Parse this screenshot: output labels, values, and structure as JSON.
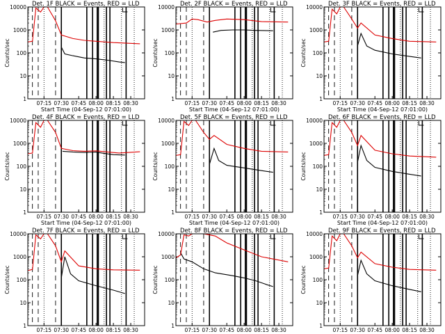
{
  "figure": {
    "ylabel": "Counts/sec",
    "xlabel": "Start Time (04-Sep-12 07:01:00)",
    "x_ticks": [
      "07:15",
      "07:30",
      "07:45",
      "08:00",
      "08:15",
      "08:30"
    ],
    "y_ticks": [
      "1",
      "10",
      "100",
      "1000",
      "10000"
    ],
    "legend_text": "BLACK = Events, RED = LLD",
    "colors": {
      "events": "#000000",
      "lld": "#dd0000",
      "frame": "#000000"
    }
  },
  "chart_data": [
    {
      "type": "line",
      "title": "Det. 1F BLACK = Events, RED = LLD",
      "xlabel": "Start Time (04-Sep-12 07:01:00)",
      "ylabel": "Counts/sec",
      "x_unit": "time HH:MM",
      "ylog": true,
      "ylim": [
        1,
        10000
      ],
      "series": [
        {
          "name": "Events",
          "color": "#000000",
          "points": [
            [
              "07:30",
              180
            ],
            [
              "07:33",
              90
            ],
            [
              "07:40",
              75
            ],
            [
              "07:50",
              60
            ],
            [
              "08:00",
              55
            ],
            [
              "08:10",
              48
            ],
            [
              "08:20",
              40
            ],
            [
              "08:25",
              38
            ]
          ]
        },
        {
          "name": "LLD",
          "color": "#dd0000",
          "points": [
            [
              "07:01",
              300
            ],
            [
              "07:05",
              320
            ],
            [
              "07:08",
              9000
            ],
            [
              "07:12",
              6000
            ],
            [
              "07:15",
              10000
            ],
            [
              "07:18",
              10000
            ],
            [
              "07:25",
              2500
            ],
            [
              "07:30",
              600
            ],
            [
              "07:40",
              420
            ],
            [
              "07:50",
              350
            ],
            [
              "08:00",
              320
            ],
            [
              "08:15",
              280
            ],
            [
              "08:30",
              260
            ],
            [
              "08:38",
              250
            ]
          ]
        }
      ]
    },
    {
      "type": "line",
      "title": "Det. 2F BLACK = Events, RED = LLD",
      "xlabel": "Start Time (04-Sep-12 07:01:00)",
      "ylabel": "Counts/sec",
      "x_unit": "time HH:MM",
      "ylog": true,
      "ylim": [
        1,
        10000
      ],
      "series": [
        {
          "name": "Events",
          "color": "#000000",
          "points": [
            [
              "07:33",
              800
            ],
            [
              "07:40",
              950
            ],
            [
              "07:50",
              1000
            ],
            [
              "08:00",
              1000
            ],
            [
              "08:10",
              950
            ],
            [
              "08:25",
              920
            ]
          ]
        },
        {
          "name": "LLD",
          "color": "#dd0000",
          "points": [
            [
              "07:01",
              1800
            ],
            [
              "07:10",
              2000
            ],
            [
              "07:15",
              3000
            ],
            [
              "07:20",
              2800
            ],
            [
              "07:28",
              2200
            ],
            [
              "07:35",
              2600
            ],
            [
              "07:45",
              3000
            ],
            [
              "08:00",
              2800
            ],
            [
              "08:15",
              2300
            ],
            [
              "08:38",
              2200
            ]
          ]
        }
      ]
    },
    {
      "type": "line",
      "title": "Det. 3F BLACK = Events, RED = LLD",
      "xlabel": "Start Time (04-Sep-12 07:01:00)",
      "ylabel": "Counts/sec",
      "x_unit": "time HH:MM",
      "ylog": true,
      "ylim": [
        1,
        10000
      ],
      "series": [
        {
          "name": "Events",
          "color": "#000000",
          "points": [
            [
              "07:30",
              200
            ],
            [
              "07:33",
              700
            ],
            [
              "07:38",
              200
            ],
            [
              "07:45",
              130
            ],
            [
              "08:00",
              90
            ],
            [
              "08:15",
              70
            ],
            [
              "08:25",
              60
            ]
          ]
        },
        {
          "name": "LLD",
          "color": "#dd0000",
          "points": [
            [
              "07:01",
              300
            ],
            [
              "07:05",
              320
            ],
            [
              "07:08",
              8000
            ],
            [
              "07:12",
              5000
            ],
            [
              "07:15",
              10000
            ],
            [
              "07:18",
              10000
            ],
            [
              "07:25",
              3000
            ],
            [
              "07:30",
              1200
            ],
            [
              "07:33",
              2000
            ],
            [
              "07:45",
              600
            ],
            [
              "08:00",
              420
            ],
            [
              "08:15",
              320
            ],
            [
              "08:38",
              300
            ]
          ]
        }
      ]
    },
    {
      "type": "line",
      "title": "Det. 4F BLACK = Events, RED = LLD",
      "xlabel": "Start Time (04-Sep-12 07:01:00)",
      "ylabel": "Counts/sec",
      "x_unit": "time HH:MM",
      "ylog": true,
      "ylim": [
        1,
        10000
      ],
      "series": [
        {
          "name": "Events",
          "color": "#000000",
          "points": [
            [
              "07:31",
              450
            ],
            [
              "07:40",
              420
            ],
            [
              "07:50",
              400
            ],
            [
              "08:00",
              420
            ],
            [
              "08:05",
              380
            ],
            [
              "08:15",
              320
            ],
            [
              "08:25",
              310
            ]
          ]
        },
        {
          "name": "LLD",
          "color": "#dd0000",
          "points": [
            [
              "07:01",
              350
            ],
            [
              "07:05",
              380
            ],
            [
              "07:08",
              8000
            ],
            [
              "07:12",
              5000
            ],
            [
              "07:15",
              10000
            ],
            [
              "07:18",
              10000
            ],
            [
              "07:25",
              3000
            ],
            [
              "07:30",
              600
            ],
            [
              "07:40",
              480
            ],
            [
              "07:50",
              450
            ],
            [
              "08:00",
              470
            ],
            [
              "08:10",
              420
            ],
            [
              "08:20",
              380
            ],
            [
              "08:38",
              430
            ]
          ]
        }
      ]
    },
    {
      "type": "line",
      "title": "Det. 5F BLACK = Events, RED = LLD",
      "xlabel": "Start Time (04-Sep-12 07:01:00)",
      "ylabel": "Counts/sec",
      "x_unit": "time HH:MM",
      "ylog": true,
      "ylim": [
        1,
        10000
      ],
      "series": [
        {
          "name": "Events",
          "color": "#000000",
          "points": [
            [
              "07:30",
              120
            ],
            [
              "07:34",
              600
            ],
            [
              "07:38",
              180
            ],
            [
              "07:45",
              110
            ],
            [
              "08:00",
              85
            ],
            [
              "08:15",
              65
            ],
            [
              "08:25",
              55
            ]
          ]
        },
        {
          "name": "LLD",
          "color": "#dd0000",
          "points": [
            [
              "07:01",
              300
            ],
            [
              "07:05",
              320
            ],
            [
              "07:08",
              9000
            ],
            [
              "07:12",
              6000
            ],
            [
              "07:15",
              10000
            ],
            [
              "07:18",
              10000
            ],
            [
              "07:25",
              3000
            ],
            [
              "07:30",
              1500
            ],
            [
              "07:34",
              2200
            ],
            [
              "07:45",
              900
            ],
            [
              "08:00",
              600
            ],
            [
              "08:15",
              450
            ],
            [
              "08:38",
              420
            ]
          ]
        }
      ]
    },
    {
      "type": "line",
      "title": "Det. 6F BLACK = Events, RED = LLD",
      "xlabel": "Start Time (04-Sep-12 07:01:00)",
      "ylabel": "Counts/sec",
      "x_unit": "time HH:MM",
      "ylog": true,
      "ylim": [
        1,
        10000
      ],
      "series": [
        {
          "name": "Events",
          "color": "#000000",
          "points": [
            [
              "07:30",
              150
            ],
            [
              "07:33",
              800
            ],
            [
              "07:38",
              180
            ],
            [
              "07:45",
              90
            ],
            [
              "08:00",
              60
            ],
            [
              "08:15",
              45
            ],
            [
              "08:25",
              38
            ]
          ]
        },
        {
          "name": "LLD",
          "color": "#dd0000",
          "points": [
            [
              "07:01",
              300
            ],
            [
              "07:05",
              320
            ],
            [
              "07:08",
              8000
            ],
            [
              "07:12",
              5000
            ],
            [
              "07:15",
              10000
            ],
            [
              "07:18",
              10000
            ],
            [
              "07:25",
              3000
            ],
            [
              "07:30",
              800
            ],
            [
              "07:33",
              2200
            ],
            [
              "07:45",
              500
            ],
            [
              "08:00",
              350
            ],
            [
              "08:15",
              280
            ],
            [
              "08:38",
              250
            ]
          ]
        }
      ]
    },
    {
      "type": "line",
      "title": "Det. 7F BLACK = Events, RED = LLD",
      "xlabel": "Start Time (04-Sep-12 07:01:00)",
      "ylabel": "Counts/sec",
      "x_unit": "time HH:MM",
      "ylog": true,
      "ylim": [
        1,
        10000
      ],
      "series": [
        {
          "name": "Events",
          "color": "#000000",
          "points": [
            [
              "07:30",
              120
            ],
            [
              "07:33",
              1000
            ],
            [
              "07:38",
              180
            ],
            [
              "07:45",
              90
            ],
            [
              "08:00",
              55
            ],
            [
              "08:15",
              35
            ],
            [
              "08:25",
              25
            ]
          ]
        },
        {
          "name": "LLD",
          "color": "#dd0000",
          "points": [
            [
              "07:01",
              250
            ],
            [
              "07:05",
              280
            ],
            [
              "07:08",
              9000
            ],
            [
              "07:12",
              6000
            ],
            [
              "07:15",
              10000
            ],
            [
              "07:18",
              10000
            ],
            [
              "07:25",
              3000
            ],
            [
              "07:30",
              600
            ],
            [
              "07:33",
              1800
            ],
            [
              "07:45",
              400
            ],
            [
              "08:00",
              300
            ],
            [
              "08:15",
              270
            ],
            [
              "08:38",
              260
            ]
          ]
        }
      ]
    },
    {
      "type": "line",
      "title": "Det. 8F BLACK = Events, RED = LLD",
      "xlabel": "Start Time (04-Sep-12 07:01:00)",
      "ylabel": "Counts/sec",
      "x_unit": "time HH:MM",
      "ylog": true,
      "ylim": [
        1,
        10000
      ],
      "series": [
        {
          "name": "Events",
          "color": "#000000",
          "points": [
            [
              "07:05",
              1500
            ],
            [
              "07:08",
              800
            ],
            [
              "07:15",
              600
            ],
            [
              "07:25",
              300
            ],
            [
              "07:35",
              200
            ],
            [
              "07:50",
              150
            ],
            [
              "08:00",
              120
            ],
            [
              "08:10",
              90
            ],
            [
              "08:20",
              60
            ],
            [
              "08:25",
              50
            ]
          ]
        },
        {
          "name": "LLD",
          "color": "#dd0000",
          "points": [
            [
              "07:01",
              900
            ],
            [
              "07:05",
              1200
            ],
            [
              "07:08",
              9000
            ],
            [
              "07:12",
              8000
            ],
            [
              "07:15",
              10000
            ],
            [
              "07:25",
              10000
            ],
            [
              "07:35",
              8000
            ],
            [
              "07:45",
              4000
            ],
            [
              "08:00",
              2000
            ],
            [
              "08:15",
              1000
            ],
            [
              "08:38",
              600
            ]
          ]
        }
      ]
    },
    {
      "type": "line",
      "title": "Det. 9F BLACK = Events, RED = LLD",
      "xlabel": "Start Time (04-Sep-12 07:01:00)",
      "ylabel": "Counts/sec",
      "x_unit": "time HH:MM",
      "ylog": true,
      "ylim": [
        1,
        10000
      ],
      "series": [
        {
          "name": "Events",
          "color": "#000000",
          "points": [
            [
              "07:30",
              150
            ],
            [
              "07:33",
              700
            ],
            [
              "07:38",
              180
            ],
            [
              "07:45",
              90
            ],
            [
              "08:00",
              55
            ],
            [
              "08:15",
              38
            ],
            [
              "08:25",
              30
            ]
          ]
        },
        {
          "name": "LLD",
          "color": "#dd0000",
          "points": [
            [
              "07:01",
              300
            ],
            [
              "07:05",
              320
            ],
            [
              "07:08",
              8000
            ],
            [
              "07:12",
              5000
            ],
            [
              "07:15",
              10000
            ],
            [
              "07:18",
              10000
            ],
            [
              "07:25",
              3000
            ],
            [
              "07:30",
              900
            ],
            [
              "07:33",
              1600
            ],
            [
              "07:45",
              500
            ],
            [
              "08:00",
              350
            ],
            [
              "08:15",
              280
            ],
            [
              "08:38",
              260
            ]
          ]
        }
      ]
    }
  ]
}
